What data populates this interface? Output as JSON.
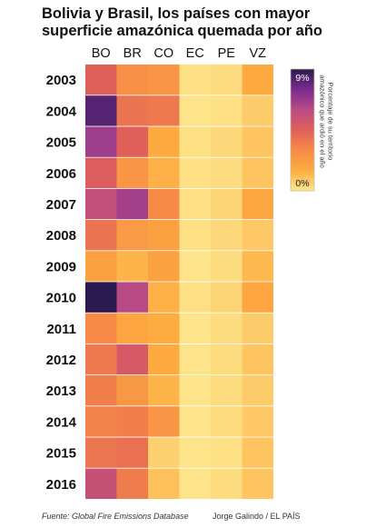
{
  "title_lines": [
    "Bolivia y Brasil, los países con mayor",
    "superficie amazónica quemada por año"
  ],
  "legend": {
    "max_label": "9%",
    "min_label": "0%",
    "title_lines": [
      "Porcentaje de su territorio",
      "amazónico que ardió en el año"
    ],
    "colors": [
      "#fde88f",
      "#fdac40",
      "#f78a47",
      "#e0605a",
      "#b84a86",
      "#7a2b8f",
      "#2a1a4f"
    ]
  },
  "chart_data": {
    "type": "heatmap",
    "x": [
      "BO",
      "BR",
      "CO",
      "EC",
      "PE",
      "VZ"
    ],
    "y": [
      "2003",
      "2004",
      "2005",
      "2006",
      "2007",
      "2008",
      "2009",
      "2010",
      "2011",
      "2012",
      "2013",
      "2014",
      "2015",
      "2016"
    ],
    "values_pct": [
      [
        4.5,
        2.8,
        2.5,
        0.2,
        0.3,
        1.6
      ],
      [
        8.2,
        3.8,
        3.6,
        0.1,
        0.2,
        0.7
      ],
      [
        6.6,
        4.5,
        1.6,
        0.2,
        0.4,
        0.9
      ],
      [
        4.7,
        2.5,
        1.4,
        0.2,
        0.3,
        0.9
      ],
      [
        5.6,
        6.5,
        3.0,
        0.2,
        0.5,
        1.7
      ],
      [
        3.8,
        2.3,
        2.0,
        0.2,
        0.4,
        0.8
      ],
      [
        2.0,
        1.3,
        2.0,
        0.1,
        0.3,
        1.2
      ],
      [
        9.0,
        6.0,
        1.4,
        0.2,
        0.5,
        1.8
      ],
      [
        3.0,
        1.8,
        1.5,
        0.1,
        0.3,
        0.7
      ],
      [
        3.6,
        4.9,
        1.6,
        0.1,
        0.3,
        0.9
      ],
      [
        3.4,
        2.4,
        1.3,
        0.1,
        0.3,
        0.7
      ],
      [
        3.3,
        3.4,
        2.5,
        0.1,
        0.3,
        0.8
      ],
      [
        3.7,
        3.9,
        0.6,
        0.1,
        0.2,
        0.9
      ],
      [
        5.5,
        3.5,
        1.0,
        0.1,
        0.3,
        0.9
      ]
    ],
    "range": [
      0,
      9
    ]
  },
  "source": "Fuente: Global Fire Emissions Database",
  "credit": "Jorge Galindo / EL PAÍS"
}
